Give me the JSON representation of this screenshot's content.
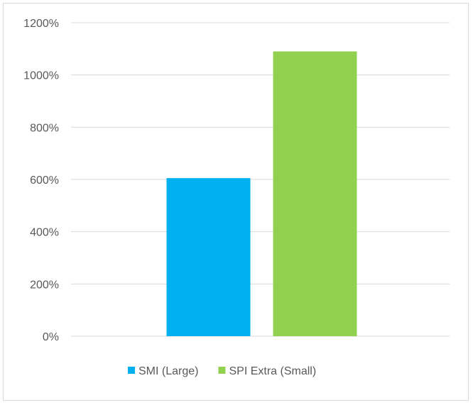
{
  "chart_data": {
    "type": "bar",
    "categories": [
      ""
    ],
    "series": [
      {
        "name": "SMI (Large)",
        "values": [
          6.05
        ],
        "color": "#00b0f0"
      },
      {
        "name": "SPI Extra (Small)",
        "values": [
          10.9
        ],
        "color": "#92d050"
      }
    ],
    "title": "",
    "xlabel": "",
    "ylabel": "",
    "ylim": [
      0,
      12
    ],
    "yticks": [
      0,
      2,
      4,
      6,
      8,
      10,
      12
    ],
    "ytick_labels": [
      "0%",
      "200%",
      "400%",
      "600%",
      "800%",
      "1000%",
      "1200%"
    ],
    "grid": true,
    "legend_position": "bottom"
  },
  "colors": {
    "gridline": "#d9d9d9",
    "text": "#595959",
    "border": "#d9d9d9"
  }
}
